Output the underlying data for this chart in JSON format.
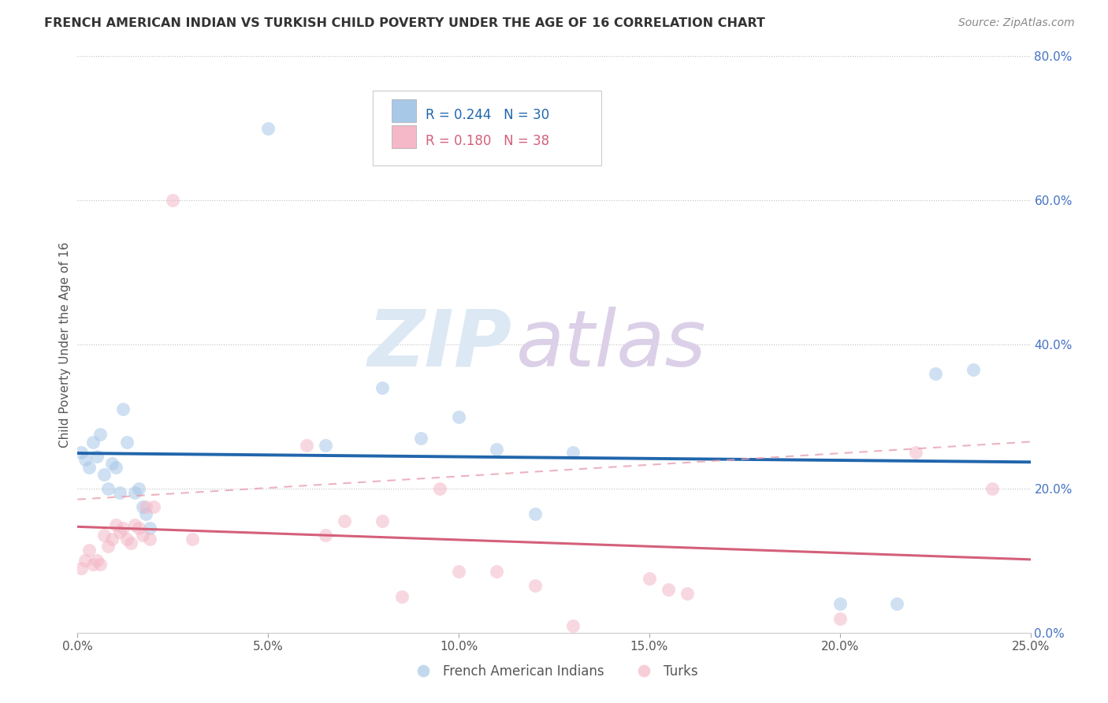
{
  "title": "FRENCH AMERICAN INDIAN VS TURKISH CHILD POVERTY UNDER THE AGE OF 16 CORRELATION CHART",
  "source": "Source: ZipAtlas.com",
  "ylabel": "Child Poverty Under the Age of 16",
  "r1": 0.244,
  "n1": 30,
  "r2": 0.18,
  "n2": 38,
  "color1": "#a8c8e8",
  "color2": "#f4b8c8",
  "line_color1": "#2166ac",
  "line_color2": "#d4607a",
  "line_color2_dash": "#e8a0b0",
  "background": "#ffffff",
  "french_x": [
    0.001,
    0.002,
    0.003,
    0.004,
    0.005,
    0.006,
    0.007,
    0.008,
    0.009,
    0.01,
    0.011,
    0.012,
    0.013,
    0.015,
    0.016,
    0.017,
    0.018,
    0.019,
    0.05,
    0.065,
    0.08,
    0.09,
    0.1,
    0.11,
    0.12,
    0.13,
    0.2,
    0.215,
    0.225,
    0.235
  ],
  "french_y": [
    0.25,
    0.24,
    0.23,
    0.265,
    0.245,
    0.275,
    0.22,
    0.2,
    0.235,
    0.23,
    0.195,
    0.31,
    0.265,
    0.195,
    0.2,
    0.175,
    0.165,
    0.145,
    0.7,
    0.26,
    0.34,
    0.27,
    0.3,
    0.255,
    0.165,
    0.25,
    0.04,
    0.04,
    0.36,
    0.365
  ],
  "turk_x": [
    0.001,
    0.002,
    0.003,
    0.004,
    0.005,
    0.006,
    0.007,
    0.008,
    0.009,
    0.01,
    0.011,
    0.012,
    0.013,
    0.014,
    0.015,
    0.016,
    0.017,
    0.018,
    0.019,
    0.02,
    0.025,
    0.03,
    0.06,
    0.065,
    0.07,
    0.08,
    0.085,
    0.095,
    0.1,
    0.11,
    0.12,
    0.13,
    0.15,
    0.155,
    0.16,
    0.2,
    0.22,
    0.24
  ],
  "turk_y": [
    0.09,
    0.1,
    0.115,
    0.095,
    0.1,
    0.095,
    0.135,
    0.12,
    0.13,
    0.15,
    0.14,
    0.145,
    0.13,
    0.125,
    0.15,
    0.145,
    0.135,
    0.175,
    0.13,
    0.175,
    0.6,
    0.13,
    0.26,
    0.135,
    0.155,
    0.155,
    0.05,
    0.2,
    0.085,
    0.085,
    0.065,
    0.01,
    0.075,
    0.06,
    0.055,
    0.02,
    0.25,
    0.2
  ],
  "xlim": [
    0.0,
    0.25
  ],
  "ylim": [
    0.0,
    0.8
  ],
  "xticks": [
    0.0,
    0.05,
    0.1,
    0.15,
    0.2,
    0.25
  ],
  "xticklabels": [
    "0.0%",
    "5.0%",
    "10.0%",
    "15.0%",
    "20.0%",
    "25.0%"
  ],
  "yticks": [
    0.0,
    0.2,
    0.4,
    0.6,
    0.8
  ],
  "yticklabels": [
    "0.0%",
    "20.0%",
    "40.0%",
    "60.0%",
    "80.0%"
  ]
}
